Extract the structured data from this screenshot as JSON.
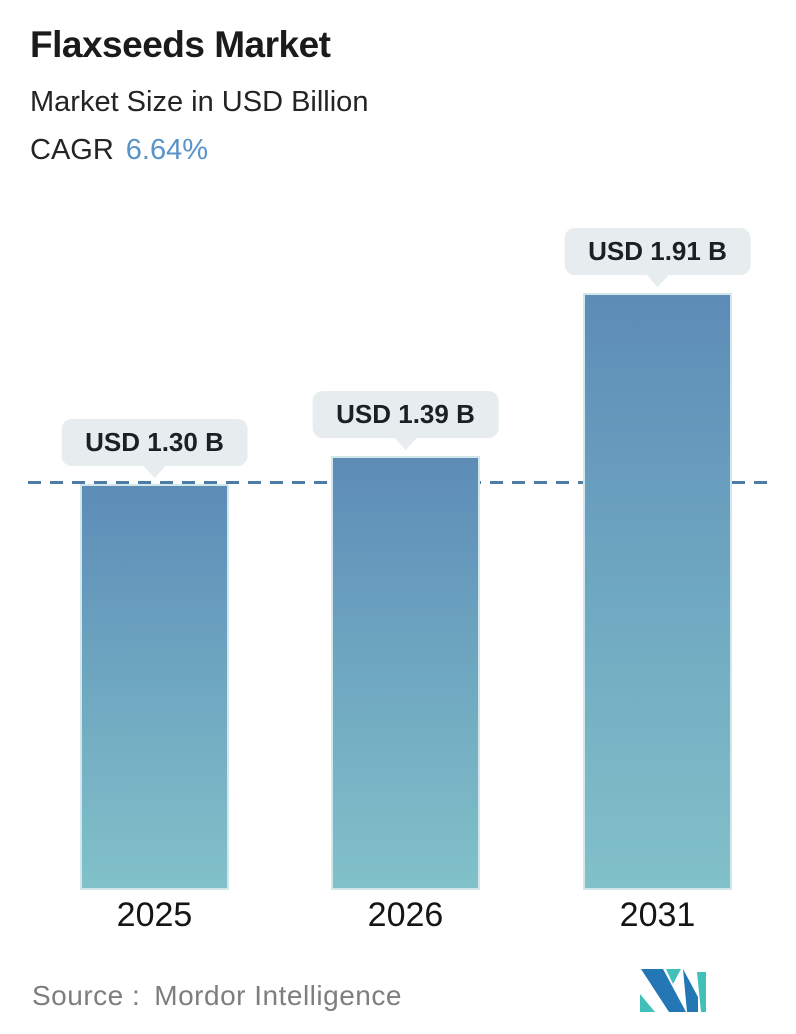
{
  "header": {
    "title": "Flaxseeds Market",
    "subtitle": "Market Size in USD Billion",
    "cagr_label": "CAGR",
    "cagr_value": "6.64%"
  },
  "chart_data": {
    "type": "bar",
    "title": "Flaxseeds Market",
    "subtitle": "Market Size in USD Billion",
    "unit": "USD Billion",
    "categories": [
      "2025",
      "2026",
      "2031"
    ],
    "values": [
      1.3,
      1.39,
      1.91
    ],
    "bar_labels": [
      "USD 1.30 B",
      "USD 1.39 B",
      "USD 1.91 B"
    ],
    "cagr_percent": 6.64,
    "ylim": [
      0,
      2.2
    ],
    "grid": false,
    "legend": "none",
    "reference_line": {
      "value": 1.3,
      "style": "dashed",
      "color": "#4d7da6"
    },
    "bar_gradient_top": "#5d8cb7",
    "bar_gradient_bottom": "#81c1c9",
    "bubble_bg": "#e7edef",
    "accent_color": "#5a93c8"
  },
  "footer": {
    "source_label": "Source :",
    "source_value": "Mordor Intelligence",
    "logo_name": "mordor-intelligence-logo",
    "logo_blue": "#2277b4",
    "logo_teal": "#41c0b9"
  }
}
